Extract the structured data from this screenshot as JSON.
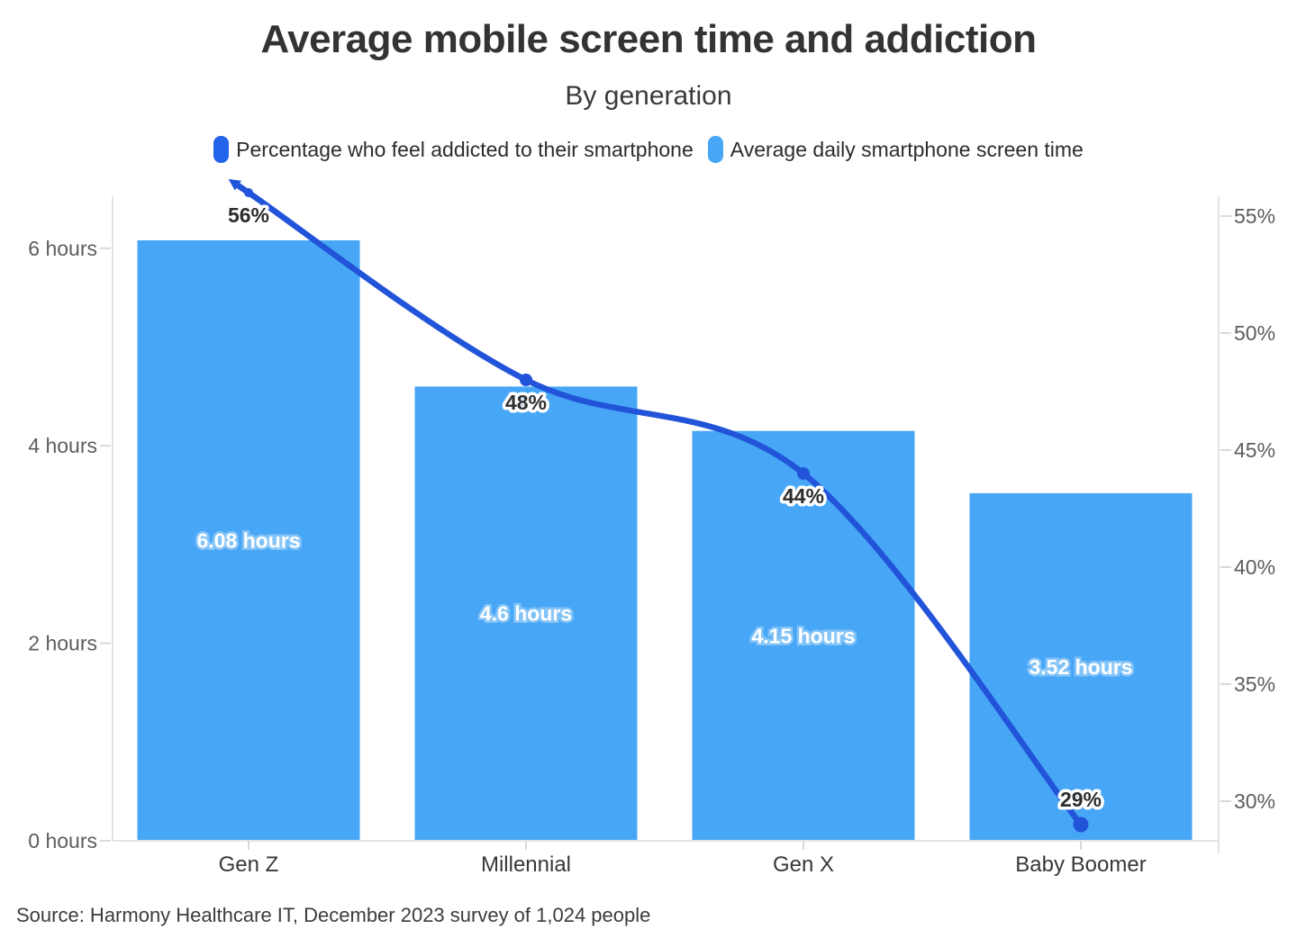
{
  "page": {
    "title": "Average mobile screen time and addiction",
    "subtitle": "By generation",
    "source": "Source: Harmony Healthcare IT, December 2023 survey of 1,024 people"
  },
  "legend": {
    "items": [
      {
        "label": "Percentage who feel addicted to their smartphone",
        "color": "#2563eb"
      },
      {
        "label": "Average daily smartphone screen time",
        "color": "#47a6f5"
      }
    ]
  },
  "chart_data": {
    "type": "combo",
    "title": "Average mobile screen time and addiction",
    "subtitle": "By generation",
    "categories": [
      "Gen Z",
      "Millennial",
      "Gen X",
      "Baby Boomer"
    ],
    "series": [
      {
        "name": "Percentage who feel addicted to their smartphone",
        "type": "line",
        "axis": "right",
        "color": "#2254da",
        "values": [
          56,
          48,
          44,
          29
        ],
        "point_labels": [
          "56%",
          "48%",
          "44%",
          "29%"
        ],
        "point_label_positions": [
          "below",
          "below",
          "below",
          "above"
        ]
      },
      {
        "name": "Average daily smartphone screen time",
        "type": "bar",
        "axis": "left",
        "color": "#47a6f5",
        "values": [
          6.08,
          4.6,
          4.15,
          3.52
        ],
        "bar_labels": [
          "6.08 hours",
          "4.6 hours",
          "4.15 hours",
          "3.52 hours"
        ]
      }
    ],
    "left_axis": {
      "unit": "hours",
      "range": [
        0,
        6.53
      ],
      "ticks": [
        {
          "value": 0,
          "label": "0 hours"
        },
        {
          "value": 2,
          "label": "2 hours"
        },
        {
          "value": 4,
          "label": "4 hours"
        },
        {
          "value": 6,
          "label": "6 hours"
        }
      ]
    },
    "right_axis": {
      "unit": "%",
      "range": [
        28.3,
        55.85
      ],
      "ticks": [
        {
          "value": 30,
          "label": "30%"
        },
        {
          "value": 35,
          "label": "35%"
        },
        {
          "value": 40,
          "label": "40%"
        },
        {
          "value": 45,
          "label": "45%"
        },
        {
          "value": 50,
          "label": "50%"
        },
        {
          "value": 55,
          "label": "55%"
        }
      ]
    },
    "grid": false,
    "legend_position": "top"
  }
}
